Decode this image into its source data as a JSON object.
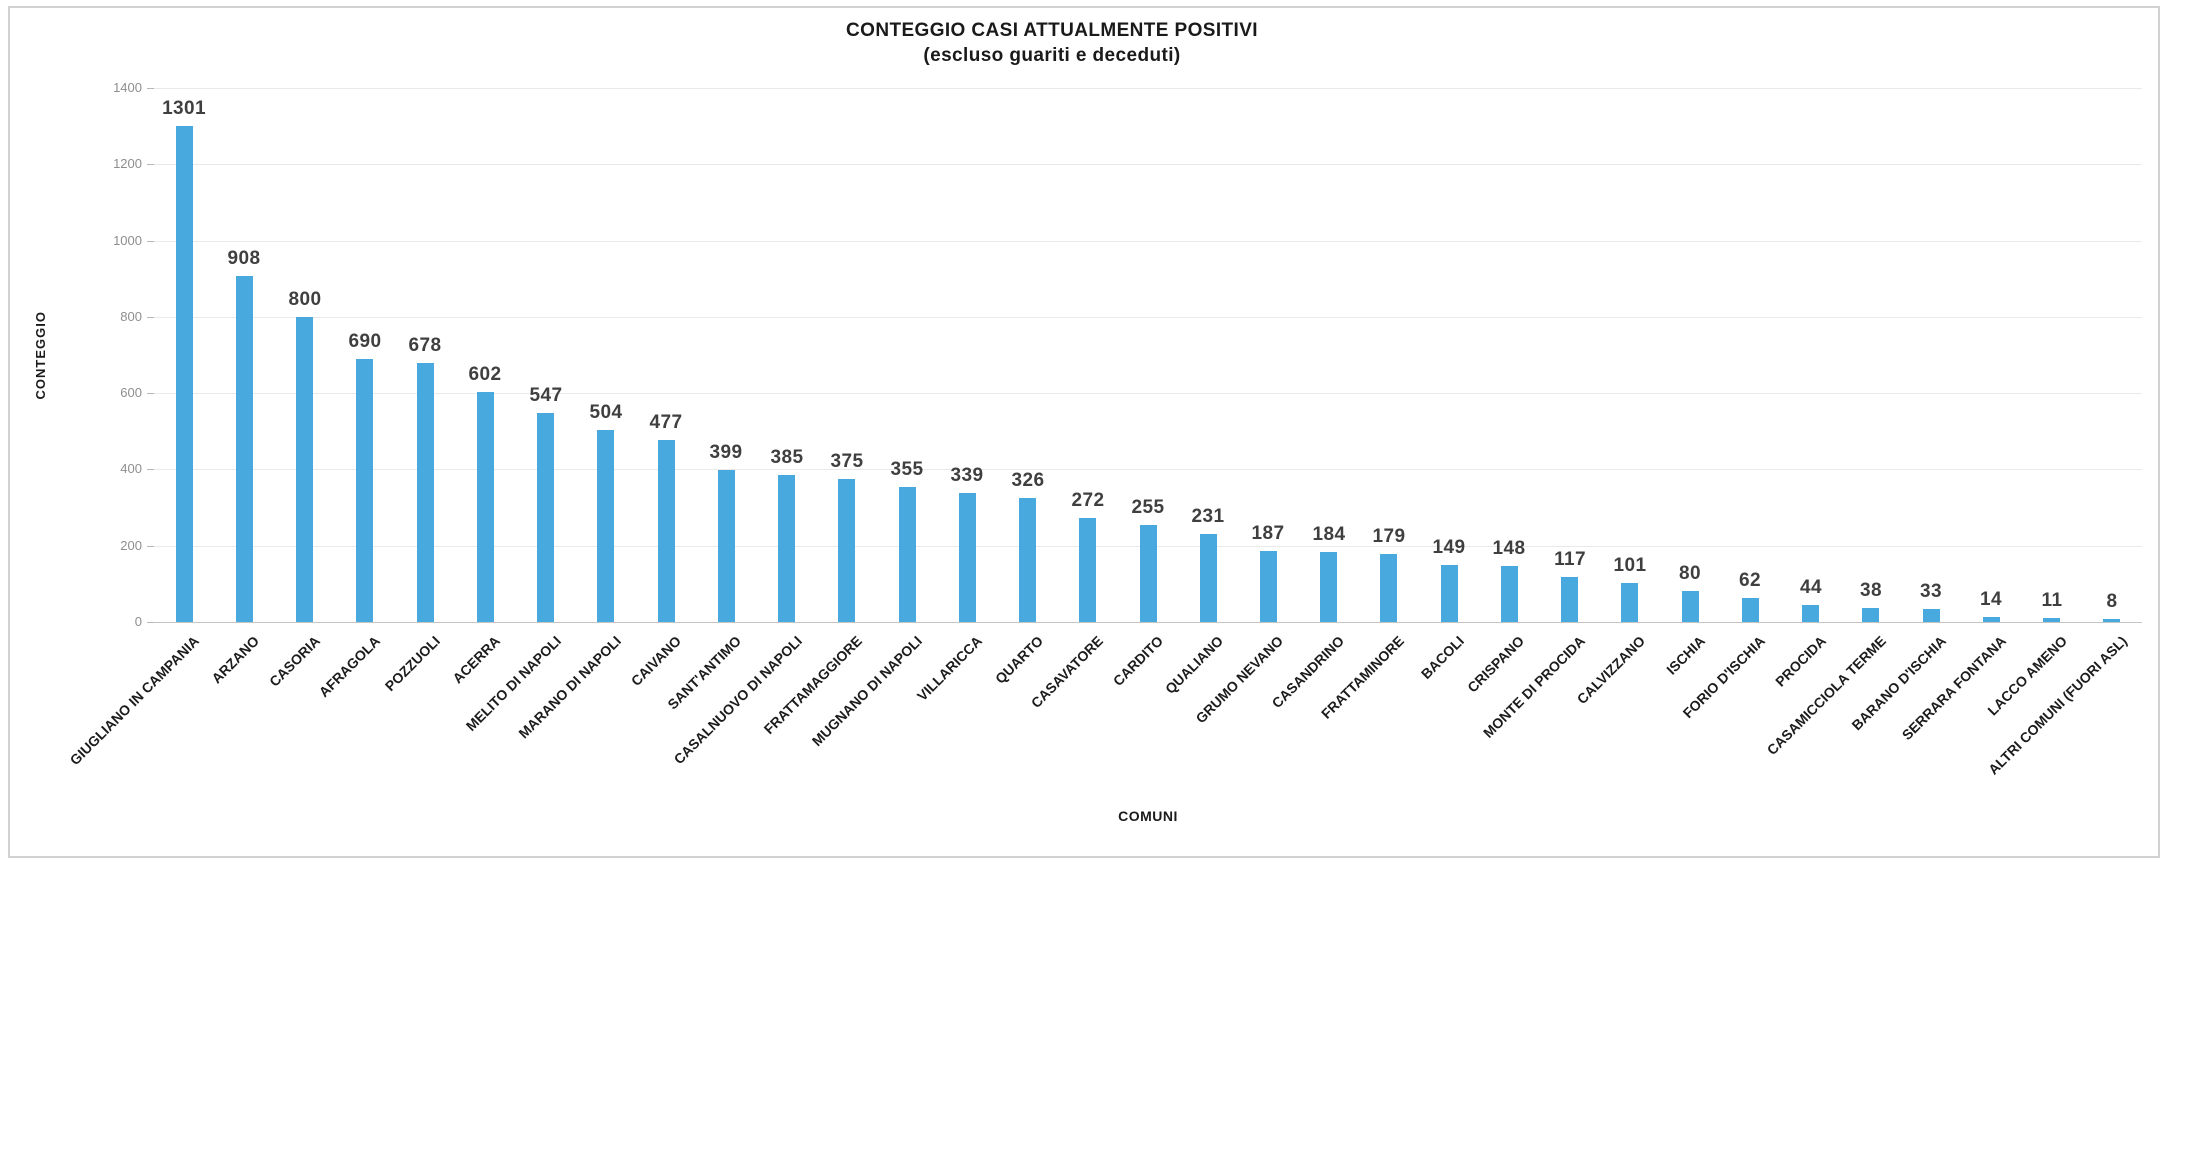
{
  "page": {
    "background": "#ffffff"
  },
  "chart": {
    "title_line1": "CONTEGGIO CASI ATTUALMENTE POSITIVI",
    "title_line2": "(escluso guariti e deceduti)",
    "x_axis_title": "COMUNI",
    "y_axis_title": "CONTEGGIO"
  },
  "chart_data": {
    "type": "bar",
    "title": "CONTEGGIO CASI ATTUALMENTE POSITIVI (escluso guariti e deceduti)",
    "xlabel": "COMUNI",
    "ylabel": "CONTEGGIO",
    "ylim": [
      0,
      1400
    ],
    "yticks": [
      0,
      200,
      400,
      600,
      800,
      1000,
      1200,
      1400
    ],
    "grid": true,
    "legend": false,
    "data_labels": true,
    "colors": {
      "bar": "#48a9df",
      "gridline": "#e9e9e9",
      "axis_line": "#c4c4c4",
      "tick_mark": "#b7b7b7",
      "tick_label": "#8e8e8e",
      "value_label": "#3f3f3f",
      "category_label": "#1c1c1c",
      "border": "#d2d2d2"
    },
    "categories": [
      "GIUGLIANO IN CAMPANIA",
      "ARZANO",
      "CASORIA",
      "AFRAGOLA",
      "POZZUOLI",
      "ACERRA",
      "MELITO DI NAPOLI",
      "MARANO DI NAPOLI",
      "CAIVANO",
      "SANT'ANTIMO",
      "CASALNUOVO DI NAPOLI",
      "FRATTAMAGGIORE",
      "MUGNANO DI NAPOLI",
      "VILLARICCA",
      "QUARTO",
      "CASAVATORE",
      "CARDITO",
      "QUALIANO",
      "GRUMO NEVANO",
      "CASANDRINO",
      "FRATTAMINORE",
      "BACOLI",
      "CRISPANO",
      "MONTE DI PROCIDA",
      "CALVIZZANO",
      "ISCHIA",
      "FORIO D'ISCHIA",
      "PROCIDA",
      "CASAMICCIOLA TERME",
      "BARANO D'ISCHIA",
      "SERRARA FONTANA",
      "LACCO AMENO",
      "ALTRI COMUNI (FUORI ASL)"
    ],
    "values": [
      1301,
      908,
      800,
      690,
      678,
      602,
      547,
      504,
      477,
      399,
      385,
      375,
      355,
      339,
      326,
      272,
      255,
      231,
      187,
      184,
      179,
      149,
      148,
      117,
      101,
      80,
      62,
      44,
      38,
      33,
      14,
      11,
      8
    ]
  }
}
